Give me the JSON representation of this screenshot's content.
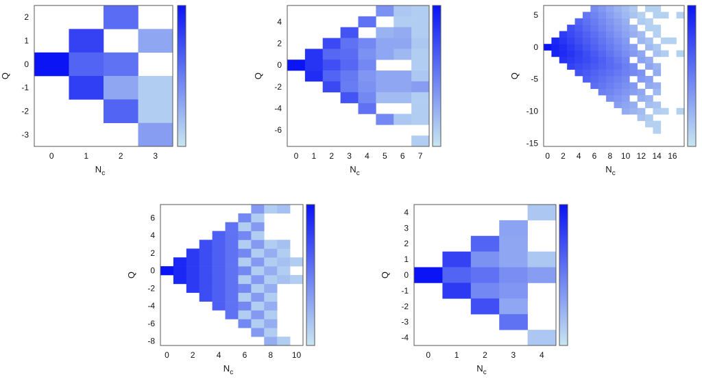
{
  "colors": {
    "low": "#c8e6f0",
    "high": "#0a14f5",
    "frame": "#555555"
  },
  "chart_data": [
    {
      "type": "heatmap",
      "xlabel": "N",
      "xlabel_sub": "c",
      "ylabel": "Q",
      "x_ticks": [
        0,
        1,
        2,
        3
      ],
      "y_ticks": [
        2,
        1,
        0,
        -1,
        -2,
        -3
      ],
      "xlim": [
        -0.5,
        3.5
      ],
      "ylim": [
        -3.5,
        2.5
      ],
      "colorbar_range": [
        0,
        1
      ],
      "cells": [
        [
          0,
          0,
          1.0
        ],
        [
          1,
          1,
          0.78
        ],
        [
          1,
          0,
          0.62
        ],
        [
          1,
          -1,
          0.8
        ],
        [
          2,
          2,
          0.58
        ],
        [
          2,
          0,
          0.55
        ],
        [
          2,
          -1,
          0.3
        ],
        [
          2,
          -2,
          0.62
        ],
        [
          3,
          1,
          0.3
        ],
        [
          3,
          -1,
          0.12
        ],
        [
          3,
          -2,
          0.12
        ],
        [
          3,
          -3,
          0.35
        ]
      ]
    },
    {
      "type": "heatmap",
      "xlabel": "N",
      "xlabel_sub": "c",
      "ylabel": "Q",
      "x_ticks": [
        0,
        1,
        2,
        3,
        4,
        5,
        6,
        7
      ],
      "y_ticks": [
        4,
        2,
        0,
        -2,
        -4,
        -6
      ],
      "xlim": [
        -0.5,
        7.5
      ],
      "ylim": [
        -7.5,
        5.5
      ],
      "colorbar_range": [
        0,
        1
      ],
      "cells": [
        [
          0,
          0,
          1.0
        ],
        [
          1,
          1,
          0.85
        ],
        [
          1,
          0,
          0.85
        ],
        [
          1,
          -1,
          0.88
        ],
        [
          2,
          2,
          0.75
        ],
        [
          2,
          1,
          0.6
        ],
        [
          2,
          0,
          0.72
        ],
        [
          2,
          -1,
          0.62
        ],
        [
          2,
          -2,
          0.75
        ],
        [
          3,
          3,
          0.7
        ],
        [
          3,
          2,
          0.55
        ],
        [
          3,
          1,
          0.58
        ],
        [
          3,
          0,
          0.6
        ],
        [
          3,
          -1,
          0.52
        ],
        [
          3,
          -2,
          0.5
        ],
        [
          3,
          -3,
          0.7
        ],
        [
          4,
          4,
          0.55
        ],
        [
          4,
          2,
          0.45
        ],
        [
          4,
          1,
          0.4
        ],
        [
          4,
          0,
          0.45
        ],
        [
          4,
          -1,
          0.38
        ],
        [
          4,
          -2,
          0.4
        ],
        [
          4,
          -3,
          0.45
        ],
        [
          4,
          -4,
          0.55
        ],
        [
          5,
          5,
          0.4
        ],
        [
          5,
          3,
          0.25
        ],
        [
          5,
          2,
          0.3
        ],
        [
          5,
          1,
          0.3
        ],
        [
          5,
          -1,
          0.3
        ],
        [
          5,
          -2,
          0.3
        ],
        [
          5,
          -3,
          0.2
        ],
        [
          5,
          -5,
          0.45
        ],
        [
          6,
          5,
          0.15
        ],
        [
          6,
          4,
          0.12
        ],
        [
          6,
          3,
          0.28
        ],
        [
          6,
          2,
          0.3
        ],
        [
          6,
          1,
          0.22
        ],
        [
          6,
          -1,
          0.3
        ],
        [
          6,
          -2,
          0.3
        ],
        [
          6,
          -3,
          0.2
        ],
        [
          6,
          -5,
          0.15
        ],
        [
          7,
          5,
          0.12
        ],
        [
          7,
          4,
          0.12
        ],
        [
          7,
          3,
          0.12
        ],
        [
          7,
          2,
          0.15
        ],
        [
          7,
          1,
          0.12
        ],
        [
          7,
          0,
          0.12
        ],
        [
          7,
          -1,
          0.15
        ],
        [
          7,
          -2,
          0.35
        ],
        [
          7,
          -3,
          0.12
        ],
        [
          7,
          -4,
          0.12
        ],
        [
          7,
          -5,
          0.12
        ],
        [
          7,
          -7,
          0.12
        ]
      ]
    },
    {
      "type": "heatmap",
      "xlabel": "N",
      "xlabel_sub": "c",
      "ylabel": "Q",
      "x_ticks": [
        0,
        2,
        4,
        6,
        8,
        10,
        12,
        14,
        16
      ],
      "y_ticks": [
        5,
        0,
        -5,
        -10,
        -15
      ],
      "xlim": [
        -0.5,
        17.5
      ],
      "ylim": [
        -15.5,
        6.5
      ],
      "colorbar_range": [
        0,
        1
      ],
      "pattern": "triangle_upper_q_cap_6_lower_slope_1",
      "cells_note": "",
      "cells": []
    },
    {
      "type": "heatmap",
      "xlabel": "N",
      "xlabel_sub": "c",
      "ylabel": "Q",
      "x_ticks": [
        0,
        2,
        4,
        6,
        8,
        10
      ],
      "y_ticks": [
        6,
        4,
        2,
        0,
        -2,
        -4,
        -6,
        -8
      ],
      "xlim": [
        -0.5,
        10.5
      ],
      "ylim": [
        -8.5,
        7.5
      ],
      "colorbar_range": [
        0,
        1
      ],
      "cells": []
    },
    {
      "type": "heatmap",
      "xlabel": "N",
      "xlabel_sub": "c",
      "ylabel": "Q",
      "x_ticks": [
        0,
        1,
        2,
        3,
        4
      ],
      "y_ticks": [
        4,
        3,
        2,
        1,
        0,
        -1,
        -2,
        -3,
        -4
      ],
      "xlim": [
        -0.5,
        4.5
      ],
      "ylim": [
        -4.5,
        4.5
      ],
      "colorbar_range": [
        0,
        1
      ],
      "cells": [
        [
          0,
          0,
          1.0
        ],
        [
          1,
          1,
          0.78
        ],
        [
          1,
          0,
          0.62
        ],
        [
          1,
          -1,
          0.82
        ],
        [
          2,
          2,
          0.62
        ],
        [
          2,
          1,
          0.4
        ],
        [
          2,
          0,
          0.55
        ],
        [
          2,
          -1,
          0.45
        ],
        [
          2,
          -2,
          0.72
        ],
        [
          3,
          3,
          0.32
        ],
        [
          3,
          2,
          0.3
        ],
        [
          3,
          1,
          0.3
        ],
        [
          3,
          0,
          0.42
        ],
        [
          3,
          -1,
          0.38
        ],
        [
          3,
          -2,
          0.3
        ],
        [
          3,
          -3,
          0.55
        ],
        [
          4,
          4,
          0.15
        ],
        [
          4,
          1,
          0.15
        ],
        [
          4,
          0,
          0.35
        ],
        [
          4,
          -4,
          0.15
        ]
      ]
    }
  ]
}
